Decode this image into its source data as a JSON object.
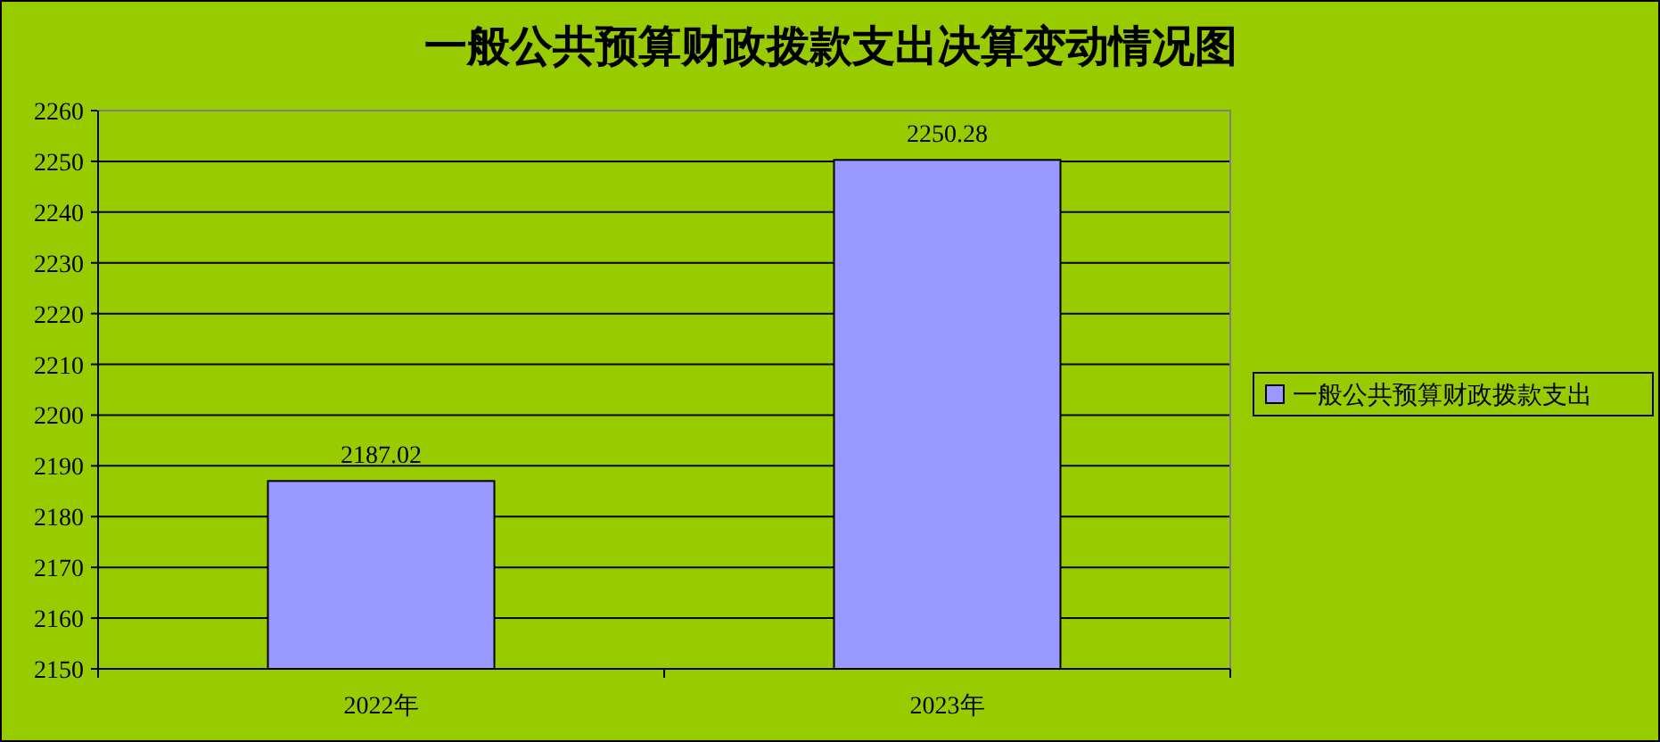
{
  "chart_data": {
    "type": "bar",
    "title": "一般公共预算财政拨款支出决算变动情况图",
    "categories": [
      "2022年",
      "2023年"
    ],
    "series": [
      {
        "name": "一般公共预算财政拨款支出",
        "color": "#9999ff",
        "values": [
          2187.02,
          2250.28
        ]
      }
    ],
    "ylim": [
      2150,
      2260
    ],
    "yticks": [
      2150,
      2160,
      2170,
      2180,
      2190,
      2200,
      2210,
      2220,
      2230,
      2240,
      2250,
      2260
    ],
    "grid": "y",
    "legend": "right",
    "data_labels": true
  }
}
